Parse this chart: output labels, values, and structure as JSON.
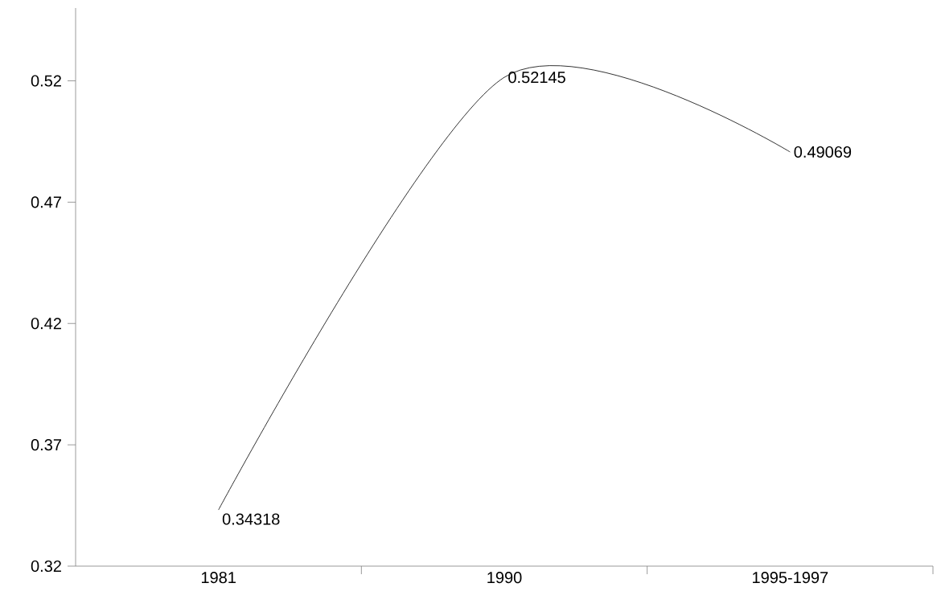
{
  "chart_data": {
    "type": "line",
    "categories": [
      "1981",
      "1990",
      "1995-1997"
    ],
    "values": [
      0.34318,
      0.52145,
      0.49069
    ],
    "color": "#000000",
    "ylim": [
      0.32,
      0.55
    ],
    "yticks": [
      0.32,
      0.37,
      0.42,
      0.47,
      0.52
    ],
    "data_labels": true,
    "marker": "none",
    "line_style": "solid",
    "grid": false
  }
}
